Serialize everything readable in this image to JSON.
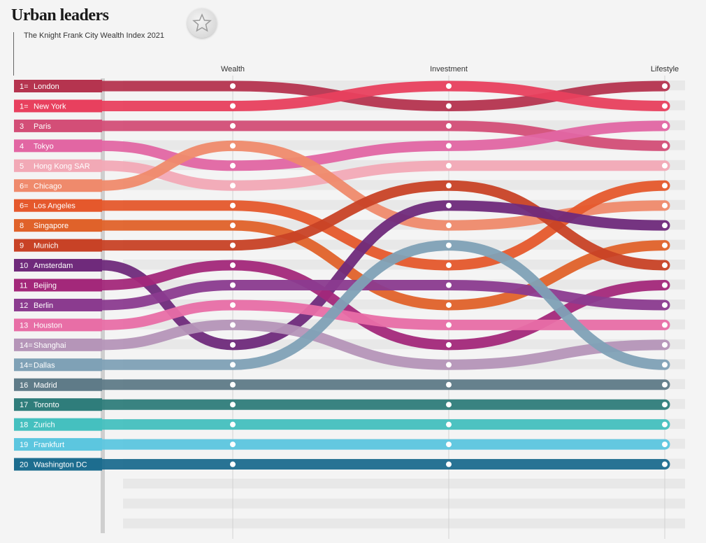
{
  "title": "Urban leaders",
  "subtitle": "The Knight Frank City Wealth Index 2021",
  "icons": {
    "emblem": "star-emblem-icon"
  },
  "chart_data": {
    "type": "bump",
    "title": "Urban leaders",
    "subtitle": "The Knight Frank City Wealth Index 2021",
    "columns": [
      "Wealth",
      "Investment",
      "Lifestyle"
    ],
    "rank_range": [
      1,
      20
    ],
    "grid": true,
    "series": [
      {
        "rank_label": "1=",
        "name": "London",
        "color": "#b5344f",
        "ranks": [
          1,
          2,
          1
        ]
      },
      {
        "rank_label": "1=",
        "name": "New York",
        "color": "#e8405e",
        "ranks": [
          2,
          1,
          2
        ]
      },
      {
        "rank_label": "3",
        "name": "Paris",
        "color": "#d34e77",
        "ranks": [
          3,
          3,
          4
        ]
      },
      {
        "rank_label": "4",
        "name": "Tokyo",
        "color": "#e266a3",
        "ranks": [
          5,
          4,
          3
        ]
      },
      {
        "rank_label": "5",
        "name": "Hong Kong SAR",
        "color": "#f2a9b6",
        "ranks": [
          6,
          5,
          5
        ]
      },
      {
        "rank_label": "6=",
        "name": "Chicago",
        "color": "#ef8a6c",
        "ranks": [
          4,
          8,
          7
        ]
      },
      {
        "rank_label": "6=",
        "name": "Los Angeles",
        "color": "#e5582c",
        "ranks": [
          7,
          10,
          6
        ]
      },
      {
        "rank_label": "8",
        "name": "Singapore",
        "color": "#e0622a",
        "ranks": [
          8,
          12,
          9
        ]
      },
      {
        "rank_label": "9",
        "name": "Munich",
        "color": "#c84226",
        "ranks": [
          9,
          6,
          10
        ]
      },
      {
        "rank_label": "10",
        "name": "Amsterdam",
        "color": "#6f2a7b",
        "ranks": [
          14,
          7,
          8
        ]
      },
      {
        "rank_label": "11",
        "name": "Beijing",
        "color": "#a3287a",
        "ranks": [
          10,
          14,
          11
        ]
      },
      {
        "rank_label": "12",
        "name": "Berlin",
        "color": "#8b3b8f",
        "ranks": [
          11,
          11,
          12
        ]
      },
      {
        "rank_label": "13",
        "name": "Houston",
        "color": "#e86ea6",
        "ranks": [
          12,
          13,
          13
        ]
      },
      {
        "rank_label": "14=",
        "name": "Shanghai",
        "color": "#b595b8",
        "ranks": [
          13,
          15,
          14
        ]
      },
      {
        "rank_label": "14=",
        "name": "Dallas",
        "color": "#7fa1b6",
        "ranks": [
          15,
          9,
          15
        ]
      },
      {
        "rank_label": "16",
        "name": "Madrid",
        "color": "#5f7b88",
        "ranks": [
          16,
          16,
          16
        ]
      },
      {
        "rank_label": "17",
        "name": "Toronto",
        "color": "#2f7d7b",
        "ranks": [
          17,
          17,
          17
        ]
      },
      {
        "rank_label": "18",
        "name": "Zurich",
        "color": "#45c0bf",
        "ranks": [
          18,
          18,
          18
        ]
      },
      {
        "rank_label": "19",
        "name": "Frankfurt",
        "color": "#5cc6df",
        "ranks": [
          19,
          19,
          19
        ]
      },
      {
        "rank_label": "20",
        "name": "Washington DC",
        "color": "#1d6d8f",
        "ranks": [
          20,
          20,
          20
        ]
      }
    ]
  }
}
